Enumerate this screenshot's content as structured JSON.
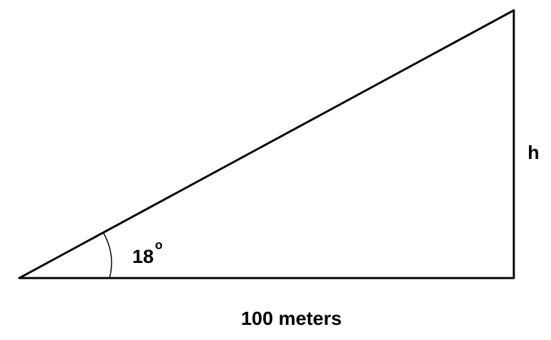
{
  "diagram": {
    "angle_value": "18",
    "angle_degree_mark": "o",
    "height_label": "h",
    "base_label": "100 meters"
  },
  "colors": {
    "stroke": "#000000",
    "background": "#ffffff"
  }
}
